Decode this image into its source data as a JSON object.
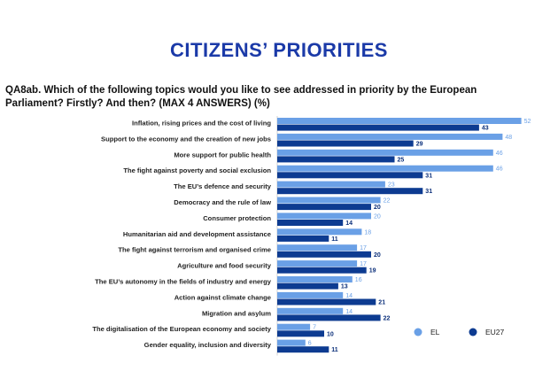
{
  "title": "CITIZENS’ PRIORITIES",
  "question": "QA8ab. Which of the following topics would you like to see addressed in priority by the European Parliament? Firstly? And then? (MAX 4 ANSWERS) (%)",
  "colors": {
    "EL": "#6aa0e6",
    "EU27": "#0d3b91",
    "title": "#1b3aa8"
  },
  "chart_data": {
    "type": "bar",
    "orientation": "horizontal",
    "xlim": [
      0,
      55
    ],
    "legend_position": "bottom-right",
    "categories": [
      "Inflation, rising prices and the cost of living",
      "Support to the economy and the creation of new jobs",
      "More support for public health",
      "The fight against poverty and social exclusion",
      "The EU’s defence and security",
      "Democracy and the rule of law",
      "Consumer protection",
      "Humanitarian aid and development assistance",
      "The fight against terrorism and organised crime",
      "Agriculture and food security",
      "The EU’s autonomy in the fields of industry and energy",
      "Action against climate change",
      "Migration and asylum",
      "The digitalisation of the European economy and society",
      "Gender equality, inclusion and diversity"
    ],
    "series": [
      {
        "name": "EL",
        "values": [
          52,
          48,
          46,
          46,
          23,
          22,
          20,
          18,
          17,
          17,
          16,
          14,
          14,
          7,
          6
        ]
      },
      {
        "name": "EU27",
        "values": [
          43,
          29,
          25,
          31,
          31,
          20,
          14,
          11,
          20,
          19,
          13,
          21,
          22,
          10,
          11
        ]
      }
    ]
  }
}
